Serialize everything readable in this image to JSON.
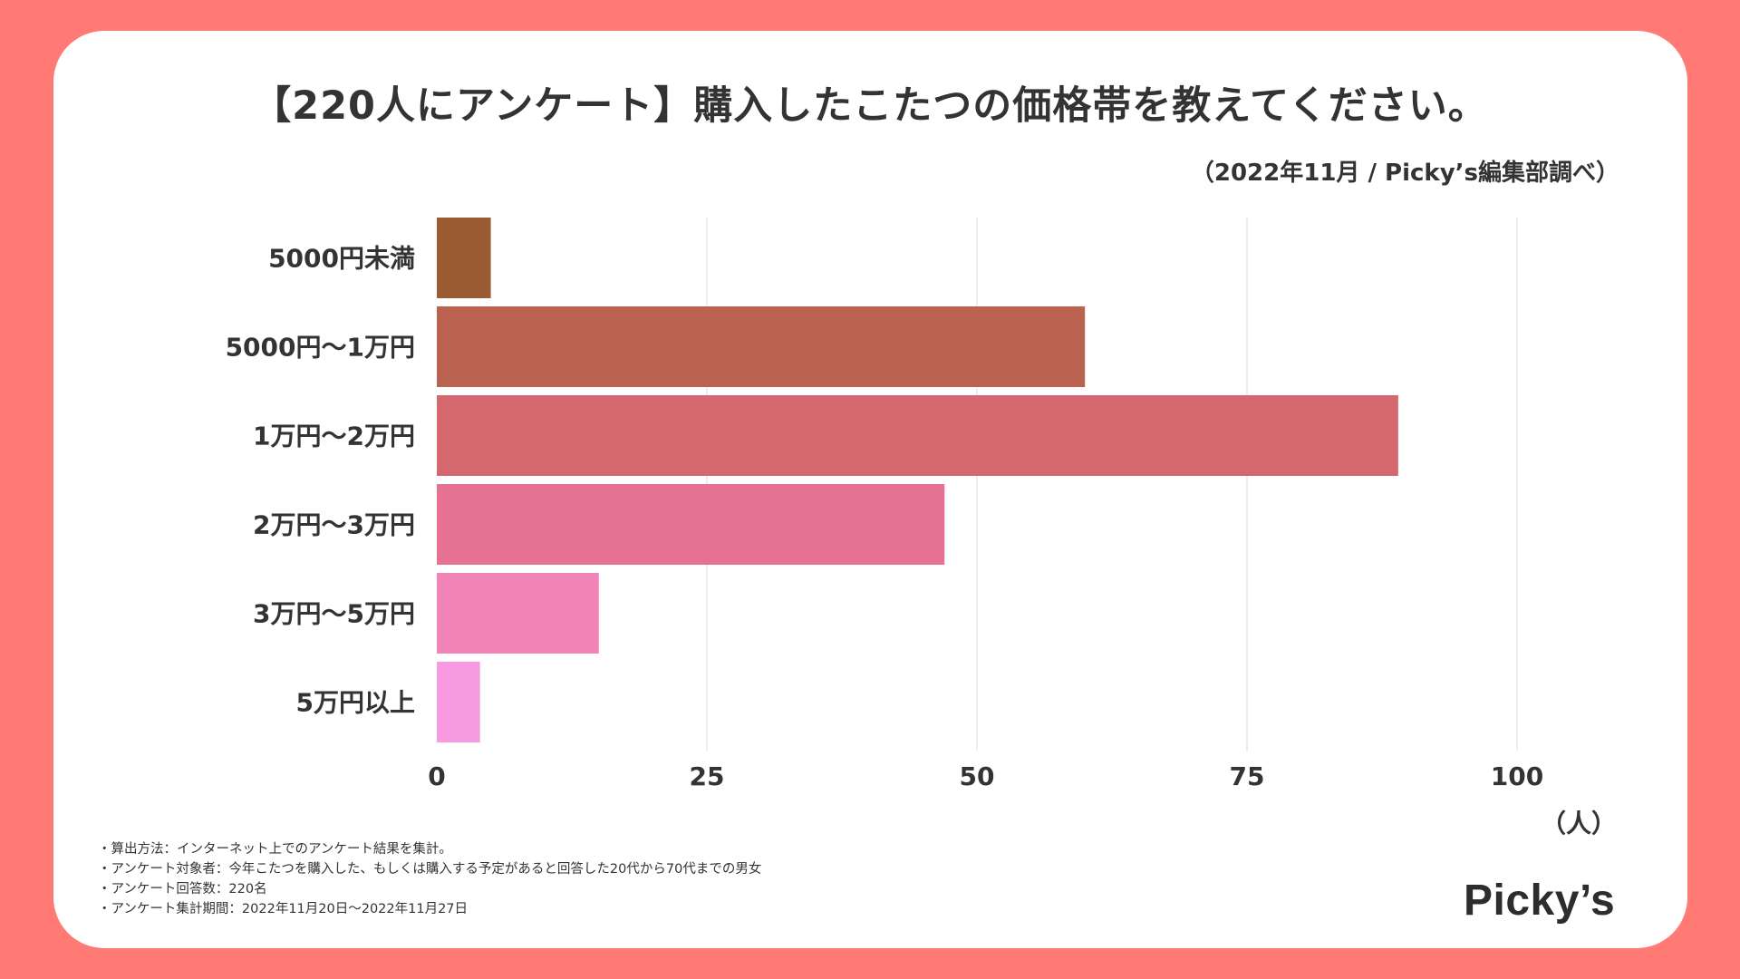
{
  "title": "【220人にアンケート】購入したこたつの価格帯を教えてください。",
  "source": "（2022年11月 / Picky’s編集部調べ）",
  "unit": "（人）",
  "notes": [
    "・算出方法：インターネット上でのアンケート結果を集計。",
    "・アンケート対象者：今年こたつを購入した、もしくは購入する予定があると回答した20代から70代までの男女",
    "・アンケート回答数：220名",
    "・アンケート集計期間：2022年11月20日～2022年11月27日"
  ],
  "logo": "Picky’s",
  "chart_data": {
    "type": "bar",
    "orientation": "horizontal",
    "title": "【220人にアンケート】購入したこたつの価格帯を教えてください。",
    "xlabel": "（人）",
    "ylabel": "",
    "categories": [
      "5000円未満",
      "5000円～1万円",
      "1万円～2万円",
      "2万円～3万円",
      "3万円～5万円",
      "5万円以上"
    ],
    "values": [
      5,
      60,
      89,
      47,
      15,
      4
    ],
    "colors": [
      "#9b5b33",
      "#b96350",
      "#d5686e",
      "#e67292",
      "#f285b8",
      "#f79ae1"
    ],
    "xlim": [
      0,
      110
    ],
    "ticks": [
      0,
      25,
      50,
      75,
      100
    ],
    "grid": true,
    "legend": "none"
  }
}
